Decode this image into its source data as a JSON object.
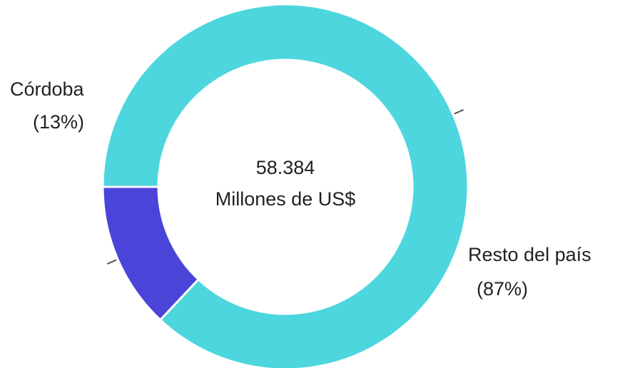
{
  "chart_data": {
    "type": "pie",
    "donut": true,
    "center_value": "58.384",
    "center_unit": "Millones de US$",
    "slices": [
      {
        "name": "Córdoba",
        "pct_label": "(13%)",
        "value": 13,
        "color": "#4b44d8"
      },
      {
        "name": "Resto del país",
        "pct_label": "(87%)",
        "value": 87,
        "color": "#4dd6de"
      }
    ],
    "legend": "none"
  }
}
